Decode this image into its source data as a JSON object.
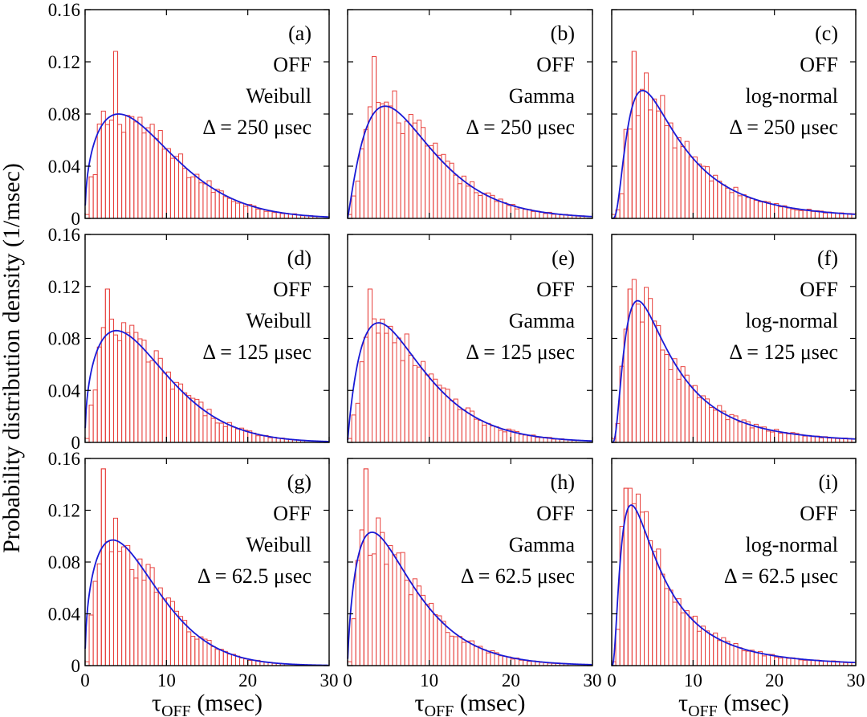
{
  "chart_data": {
    "type": "bar",
    "layout": "3x3 grid of histograms with fitted density curves",
    "ylabel": "Probability distribution density (1/msec)",
    "xlabel": {
      "main": "τ",
      "sub": "OFF",
      "unit": " (msec)"
    },
    "xlim": [
      0,
      30
    ],
    "ylim": [
      0,
      0.16
    ],
    "xticks": [
      "0",
      "10",
      "20",
      "30"
    ],
    "yticks": [
      "0",
      "0.04",
      "0.08",
      "0.12",
      "0.16"
    ],
    "bin_width_msec": 0.5,
    "colors": {
      "histogram": "#e8433f",
      "fit": "#1a1ad6",
      "frame": "#000000"
    },
    "panels": [
      {
        "label": "(a)",
        "state": "OFF",
        "fit": "Weibull",
        "delta": "Δ = 250 μsec",
        "peak_x": 5.0,
        "peak_y": 0.08,
        "mode": "weibull",
        "spike": 0.128
      },
      {
        "label": "(b)",
        "state": "OFF",
        "fit": "Gamma",
        "delta": "Δ = 250 μsec",
        "peak_x": 4.6,
        "peak_y": 0.086,
        "mode": "gamma",
        "spike": 0.124
      },
      {
        "label": "(c)",
        "state": "OFF",
        "fit": "log-normal",
        "delta": "Δ = 250 μsec",
        "peak_x": 3.8,
        "peak_y": 0.098,
        "mode": "lognormal",
        "spike": 0.128
      },
      {
        "label": "(d)",
        "state": "OFF",
        "fit": "Weibull",
        "delta": "Δ = 125 μsec",
        "peak_x": 4.0,
        "peak_y": 0.086,
        "mode": "weibull",
        "spike": 0.118
      },
      {
        "label": "(e)",
        "state": "OFF",
        "fit": "Gamma",
        "delta": "Δ = 125 μsec",
        "peak_x": 3.8,
        "peak_y": 0.092,
        "mode": "gamma",
        "spike": 0.118
      },
      {
        "label": "(f)",
        "state": "OFF",
        "fit": "log-normal",
        "delta": "Δ = 125 μsec",
        "peak_x": 3.2,
        "peak_y": 0.109,
        "mode": "lognormal",
        "spike": 0.118
      },
      {
        "label": "(g)",
        "state": "OFF",
        "fit": "Weibull",
        "delta": "Δ = 62.5 μsec",
        "peak_x": 3.0,
        "peak_y": 0.097,
        "mode": "weibull",
        "spike": 0.152
      },
      {
        "label": "(h)",
        "state": "OFF",
        "fit": "Gamma",
        "delta": "Δ = 62.5 μsec",
        "peak_x": 3.0,
        "peak_y": 0.103,
        "mode": "gamma",
        "spike": 0.152
      },
      {
        "label": "(i)",
        "state": "OFF",
        "fit": "log-normal",
        "delta": "Δ = 62.5 μsec",
        "peak_x": 2.4,
        "peak_y": 0.124,
        "mode": "lognormal",
        "spike": 0.137
      }
    ]
  }
}
